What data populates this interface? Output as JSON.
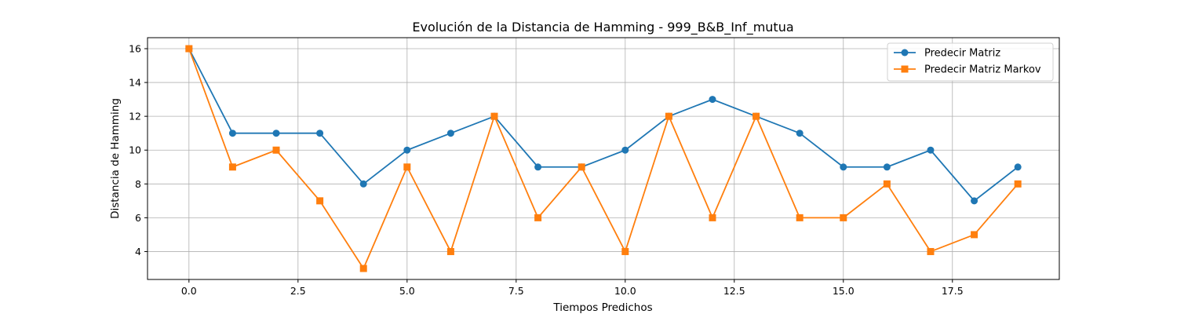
{
  "chart_data": {
    "type": "line",
    "title": "Evolución de la Distancia de Hamming - 999_B&B_Inf_mutua",
    "xlabel": "Tiempos Predichos",
    "ylabel": "Distancia de Hamming",
    "x": [
      0,
      1,
      2,
      3,
      4,
      5,
      6,
      7,
      8,
      9,
      10,
      11,
      12,
      13,
      14,
      15,
      16,
      17,
      18,
      19
    ],
    "series": [
      {
        "name": "Predecir Matriz",
        "color": "#1f77b4",
        "marker": "circle",
        "values": [
          16,
          11,
          11,
          11,
          8,
          10,
          11,
          12,
          9,
          9,
          10,
          12,
          13,
          12,
          11,
          9,
          9,
          10,
          7,
          9
        ]
      },
      {
        "name": "Predecir Matriz Markov",
        "color": "#ff7f0e",
        "marker": "square",
        "values": [
          16,
          9,
          10,
          7,
          3,
          9,
          4,
          12,
          6,
          9,
          4,
          12,
          6,
          12,
          6,
          6,
          8,
          4,
          5,
          8
        ]
      }
    ],
    "xlim": [
      -0.95,
      19.95
    ],
    "ylim": [
      2.35,
      16.65
    ],
    "xticks": [
      0.0,
      2.5,
      5.0,
      7.5,
      10.0,
      12.5,
      15.0,
      17.5
    ],
    "xtick_labels": [
      "0.0",
      "2.5",
      "5.0",
      "7.5",
      "10.0",
      "12.5",
      "15.0",
      "17.5"
    ],
    "yticks": [
      4,
      6,
      8,
      10,
      12,
      14,
      16
    ],
    "ytick_labels": [
      "4",
      "6",
      "8",
      "10",
      "12",
      "14",
      "16"
    ],
    "grid": true,
    "legend_position": "top-right"
  }
}
